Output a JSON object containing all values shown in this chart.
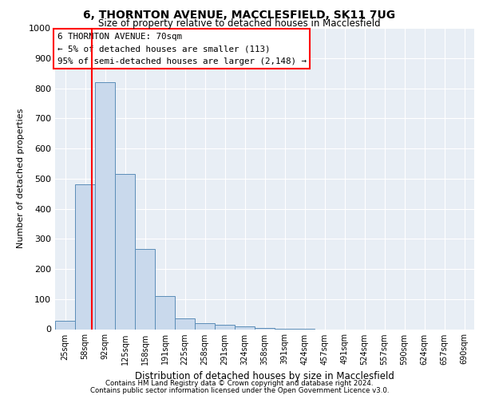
{
  "title1": "6, THORNTON AVENUE, MACCLESFIELD, SK11 7UG",
  "title2": "Size of property relative to detached houses in Macclesfield",
  "xlabel": "Distribution of detached houses by size in Macclesfield",
  "ylabel": "Number of detached properties",
  "bin_labels": [
    "25sqm",
    "58sqm",
    "92sqm",
    "125sqm",
    "158sqm",
    "191sqm",
    "225sqm",
    "258sqm",
    "291sqm",
    "324sqm",
    "358sqm",
    "391sqm",
    "424sqm",
    "457sqm",
    "491sqm",
    "524sqm",
    "557sqm",
    "590sqm",
    "624sqm",
    "657sqm",
    "690sqm"
  ],
  "bar_heights": [
    28,
    480,
    820,
    515,
    265,
    110,
    35,
    20,
    15,
    8,
    5,
    2,
    1,
    0,
    0,
    0,
    0,
    0,
    0,
    0,
    0
  ],
  "bar_color": "#c9d9ec",
  "bar_edge_color": "#5b8db8",
  "annotation_lines": [
    "6 THORNTON AVENUE: 70sqm",
    "← 5% of detached houses are smaller (113)",
    "95% of semi-detached houses are larger (2,148) →"
  ],
  "ylim": [
    0,
    1000
  ],
  "yticks": [
    0,
    100,
    200,
    300,
    400,
    500,
    600,
    700,
    800,
    900,
    1000
  ],
  "footer1": "Contains HM Land Registry data © Crown copyright and database right 2024.",
  "footer2": "Contains public sector information licensed under the Open Government Licence v3.0.",
  "bg_color": "#e8eef5"
}
